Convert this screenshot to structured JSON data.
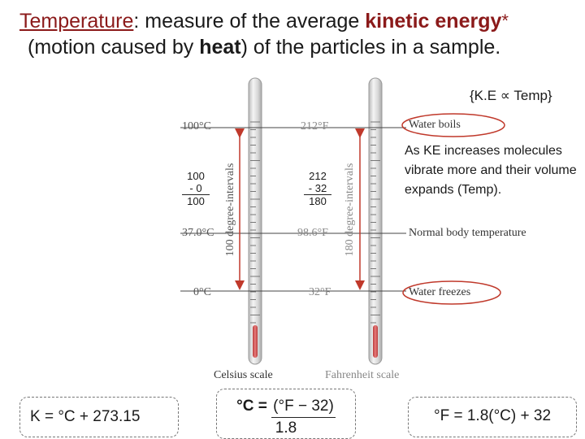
{
  "title": {
    "term": "Temperature",
    "t1": ": measure of the average ",
    "ke": "kinetic energy",
    "star": "*",
    "t2": "(motion caused by ",
    "heat": "heat",
    "t3": ") of the particles in a sample."
  },
  "proportionality": "{K.E ∝ Temp}",
  "celsius": {
    "top": "100°C",
    "body": "37.0°C",
    "bottom": "0°C",
    "interval": "100 degree-intervals",
    "scale_name": "Celsius scale",
    "math": [
      "100",
      "- 0",
      "100"
    ]
  },
  "fahrenheit": {
    "top": "212°F",
    "body": "98.6°F",
    "bottom": "32°F",
    "interval": "180 degree-intervals",
    "scale_name": "Fahrenheit scale",
    "math": [
      "212",
      "- 32",
      "180"
    ]
  },
  "events": {
    "boils": "Water boils",
    "body": "Normal body temperature",
    "freezes": "Water freezes"
  },
  "explanation": "As KE increases molecules vibrate more and their volume expands (Temp).",
  "formulas": {
    "kelvin": "K = °C + 273.15",
    "c_left": "°C = ",
    "c_num": "(°F − 32)",
    "c_den": "1.8",
    "fahrenheit": "°F = 1.8(°C) + 32"
  },
  "colors": {
    "accent": "#8b1a1a",
    "arrow": "#c0392b",
    "mercury": "#d9534f"
  }
}
